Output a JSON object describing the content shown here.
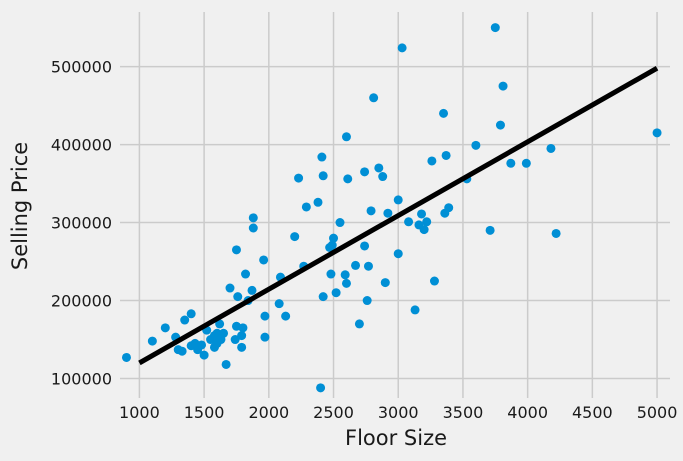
{
  "chart_data": {
    "type": "scatter",
    "title": "",
    "xlabel": "Floor Size",
    "ylabel": "Selling Price",
    "xlim": [
      850,
      5100
    ],
    "ylim": [
      75000,
      570000
    ],
    "xticks": [
      1000,
      1500,
      2000,
      2500,
      3000,
      3500,
      4000,
      4500,
      5000
    ],
    "yticks": [
      100000,
      200000,
      300000,
      400000,
      500000
    ],
    "grid": true,
    "colors": {
      "points": "#008fd5",
      "fit_line": "#000000",
      "background": "#f0f0f0",
      "grid": "#cbcbcb"
    },
    "series": [
      {
        "type": "scatter",
        "points": [
          [
            900,
            127000
          ],
          [
            1100,
            148000
          ],
          [
            1200,
            165000
          ],
          [
            1280,
            153000
          ],
          [
            1300,
            137000
          ],
          [
            1330,
            135000
          ],
          [
            1350,
            175000
          ],
          [
            1400,
            183000
          ],
          [
            1400,
            142000
          ],
          [
            1430,
            145000
          ],
          [
            1450,
            137000
          ],
          [
            1480,
            143000
          ],
          [
            1500,
            130000
          ],
          [
            1520,
            162000
          ],
          [
            1550,
            150000
          ],
          [
            1580,
            140000
          ],
          [
            1580,
            155000
          ],
          [
            1600,
            145000
          ],
          [
            1600,
            158000
          ],
          [
            1620,
            170000
          ],
          [
            1630,
            150000
          ],
          [
            1650,
            158000
          ],
          [
            1670,
            118000
          ],
          [
            1700,
            216000
          ],
          [
            1740,
            150000
          ],
          [
            1750,
            167000
          ],
          [
            1750,
            265000
          ],
          [
            1760,
            205000
          ],
          [
            1790,
            140000
          ],
          [
            1790,
            155000
          ],
          [
            1800,
            165000
          ],
          [
            1820,
            234000
          ],
          [
            1840,
            200000
          ],
          [
            1870,
            213000
          ],
          [
            1880,
            306000
          ],
          [
            1880,
            293000
          ],
          [
            1960,
            252000
          ],
          [
            1970,
            180000
          ],
          [
            1970,
            153000
          ],
          [
            2080,
            196000
          ],
          [
            2090,
            230000
          ],
          [
            2130,
            180000
          ],
          [
            2200,
            282000
          ],
          [
            2230,
            357000
          ],
          [
            2270,
            244000
          ],
          [
            2290,
            320000
          ],
          [
            2380,
            326000
          ],
          [
            2400,
            88000
          ],
          [
            2410,
            384000
          ],
          [
            2420,
            205000
          ],
          [
            2420,
            360000
          ],
          [
            2470,
            268000
          ],
          [
            2480,
            234000
          ],
          [
            2490,
            271000
          ],
          [
            2500,
            280000
          ],
          [
            2520,
            210000
          ],
          [
            2550,
            300000
          ],
          [
            2590,
            233000
          ],
          [
            2600,
            222000
          ],
          [
            2600,
            410000
          ],
          [
            2610,
            356000
          ],
          [
            2670,
            245000
          ],
          [
            2700,
            170000
          ],
          [
            2740,
            270000
          ],
          [
            2740,
            365000
          ],
          [
            2760,
            200000
          ],
          [
            2770,
            244000
          ],
          [
            2790,
            315000
          ],
          [
            2810,
            460000
          ],
          [
            2850,
            370000
          ],
          [
            2880,
            359000
          ],
          [
            2900,
            223000
          ],
          [
            2920,
            312000
          ],
          [
            3000,
            329000
          ],
          [
            3000,
            260000
          ],
          [
            3030,
            524000
          ],
          [
            3080,
            301000
          ],
          [
            3130,
            188000
          ],
          [
            3160,
            297000
          ],
          [
            3180,
            311000
          ],
          [
            3200,
            291000
          ],
          [
            3220,
            301000
          ],
          [
            3260,
            379000
          ],
          [
            3280,
            225000
          ],
          [
            3350,
            440000
          ],
          [
            3360,
            312000
          ],
          [
            3370,
            386000
          ],
          [
            3390,
            319000
          ],
          [
            3530,
            356000
          ],
          [
            3600,
            399000
          ],
          [
            3710,
            290000
          ],
          [
            3750,
            550000
          ],
          [
            3790,
            425000
          ],
          [
            3810,
            475000
          ],
          [
            3870,
            376000
          ],
          [
            3990,
            376000
          ],
          [
            4180,
            395000
          ],
          [
            4220,
            286000
          ],
          [
            5000,
            415000
          ]
        ]
      },
      {
        "type": "line",
        "points": [
          [
            1000,
            120000
          ],
          [
            5000,
            498000
          ]
        ]
      }
    ]
  }
}
